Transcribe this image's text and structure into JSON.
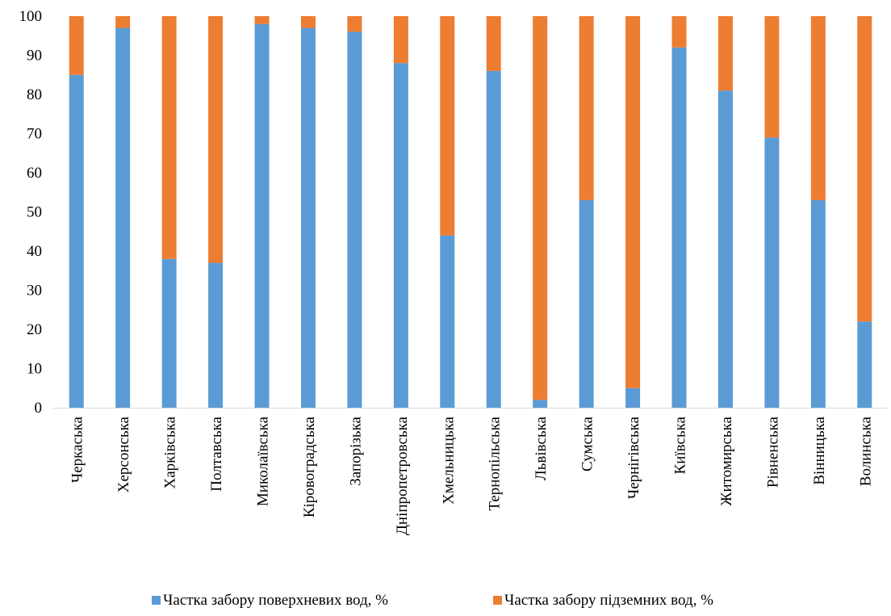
{
  "chart_data": {
    "type": "bar",
    "stacked": true,
    "categories": [
      "Черкаська",
      "Херсонська",
      "Харківська",
      "Полтавська",
      "Миколаївська",
      "Кіровоградська",
      "Запорізька",
      "Дніпропетровська",
      "Хмельницька",
      "Тернопільська",
      "Львівська",
      "Сумська",
      "Чернігівська",
      "Київська",
      "Житомирська",
      "Рівненська",
      "Вінницька",
      "Волинська"
    ],
    "series": [
      {
        "name": "Частка забору поверхневих вод, %",
        "color": "#5B9BD5",
        "values": [
          85,
          97,
          38,
          37,
          98,
          97,
          96,
          88,
          44,
          86,
          2,
          53,
          5,
          92,
          81,
          69,
          53,
          22
        ]
      },
      {
        "name": "Частка забору підземних вод, %",
        "color": "#ED7D31",
        "values": [
          15,
          3,
          62,
          63,
          2,
          3,
          4,
          12,
          56,
          14,
          98,
          47,
          95,
          8,
          19,
          31,
          47,
          78
        ]
      }
    ],
    "ylim": [
      0,
      100
    ],
    "yticks": [
      0,
      10,
      20,
      30,
      40,
      50,
      60,
      70,
      80,
      90,
      100
    ],
    "grid": false,
    "legend_position": "bottom"
  }
}
